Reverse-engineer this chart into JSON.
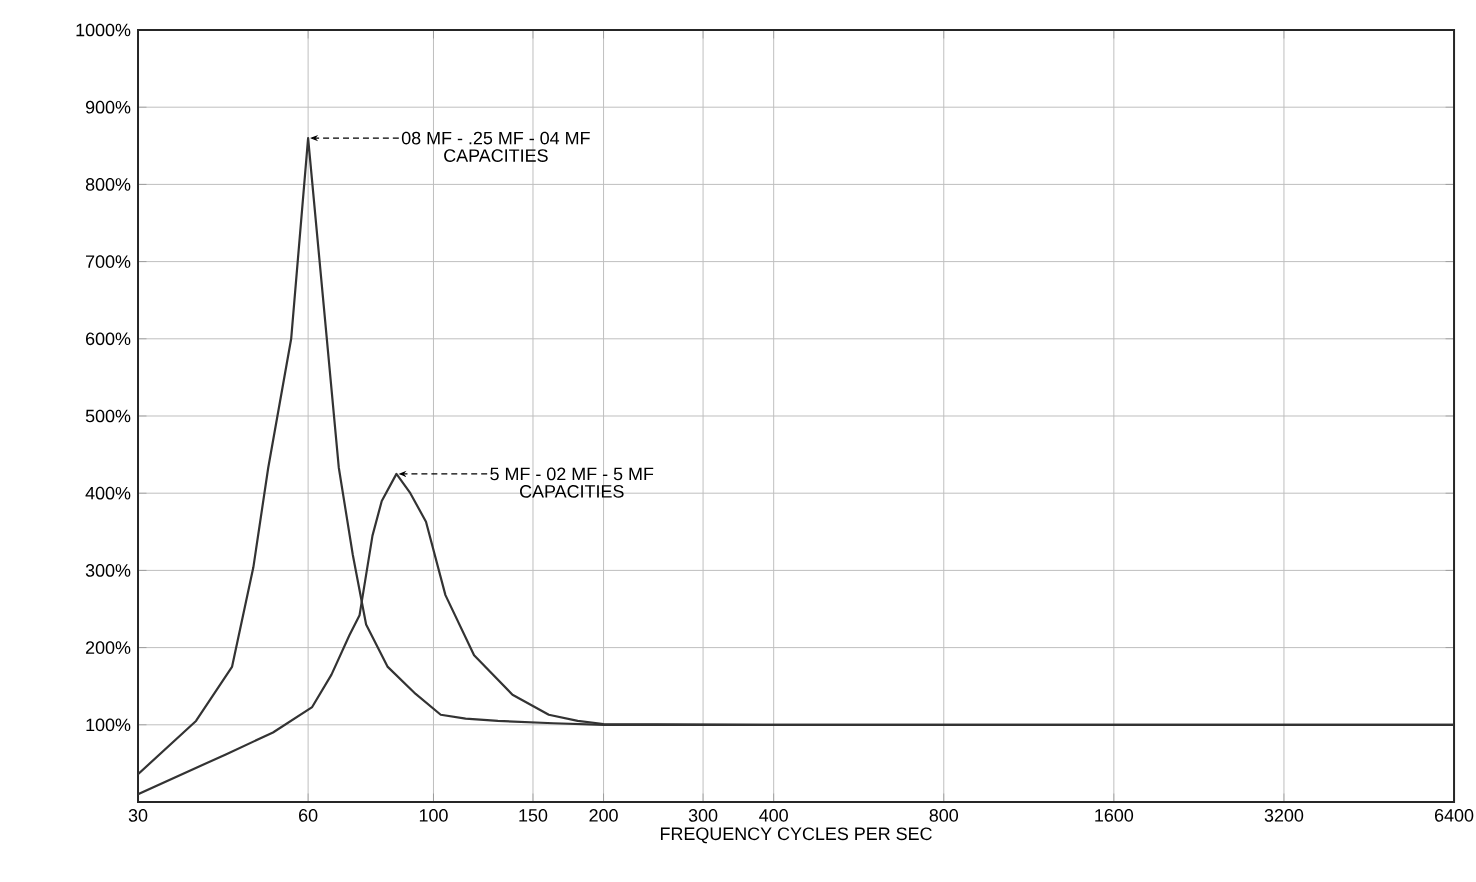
{
  "chart_data": {
    "type": "line",
    "xlabel": "FREQUENCY CYCLES PER SEC",
    "xlim": [
      30,
      6400
    ],
    "xticks": [
      30,
      60,
      100,
      150,
      200,
      300,
      400,
      800,
      1600,
      3200,
      6400
    ],
    "ylim": [
      0,
      1000
    ],
    "yticks": [
      {
        "value": 100,
        "label": "100%"
      },
      {
        "value": 200,
        "label": "200%"
      },
      {
        "value": 300,
        "label": "300%"
      },
      {
        "value": 400,
        "label": "400%"
      },
      {
        "value": 500,
        "label": "500%"
      },
      {
        "value": 600,
        "label": "600%"
      },
      {
        "value": 700,
        "label": "700%"
      },
      {
        "value": 800,
        "label": "800%"
      },
      {
        "value": 900,
        "label": "900%"
      },
      {
        "value": 1000,
        "label": "1000%"
      }
    ],
    "grid": true,
    "log": "x",
    "marker": "none",
    "line_style": "solid",
    "series": [
      {
        "color": "#333333",
        "x": [
          30,
          38,
          44,
          48,
          51,
          56,
          60,
          64,
          68,
          72,
          76,
          83,
          93,
          103,
          114,
          130,
          163,
          200,
          400,
          800,
          1600,
          3200,
          6400
        ],
        "values": [
          36,
          105,
          175,
          304,
          433,
          600,
          860,
          640,
          433,
          320,
          230,
          175,
          140,
          113,
          108,
          105,
          102,
          100,
          100,
          100,
          100,
          100,
          100
        ]
      },
      {
        "color": "#333333",
        "x": [
          30,
          43,
          52,
          61,
          66,
          71,
          74,
          78,
          81,
          86,
          91,
          97,
          105,
          118,
          138,
          160,
          180,
          200,
          400,
          800,
          1600,
          3200,
          6400
        ],
        "values": [
          10,
          62,
          90,
          123,
          165,
          216,
          242,
          345,
          390,
          425,
          400,
          363,
          268,
          190,
          139,
          113,
          105,
          101,
          100,
          100,
          100,
          100,
          100
        ]
      }
    ],
    "annotations": [
      {
        "text": "08 MF - .25 MF - 04 MF",
        "x": 60,
        "y": 860
      },
      "CAPACITIES",
      {
        "text": "5 MF - 02 MF - 5 MF",
        "x": 86,
        "y": 425
      },
      "CAPACITIES"
    ]
  }
}
